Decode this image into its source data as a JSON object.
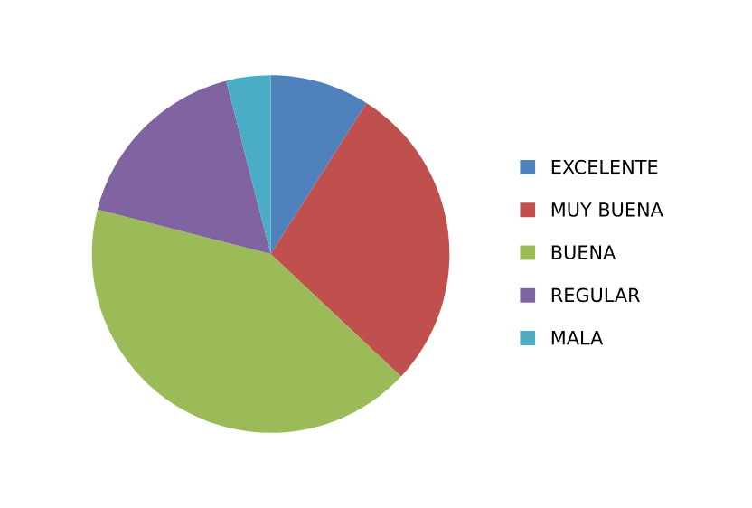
{
  "chart_data": {
    "type": "pie",
    "categories": [
      "EXCELENTE",
      "MUY BUENA",
      "BUENA",
      "REGULAR",
      "MALA"
    ],
    "values": [
      9,
      28,
      42,
      17,
      4
    ],
    "colors": [
      "#4f81bd",
      "#c0504d",
      "#9bbb59",
      "#8064a2",
      "#4bacc6"
    ],
    "legend": "right"
  }
}
